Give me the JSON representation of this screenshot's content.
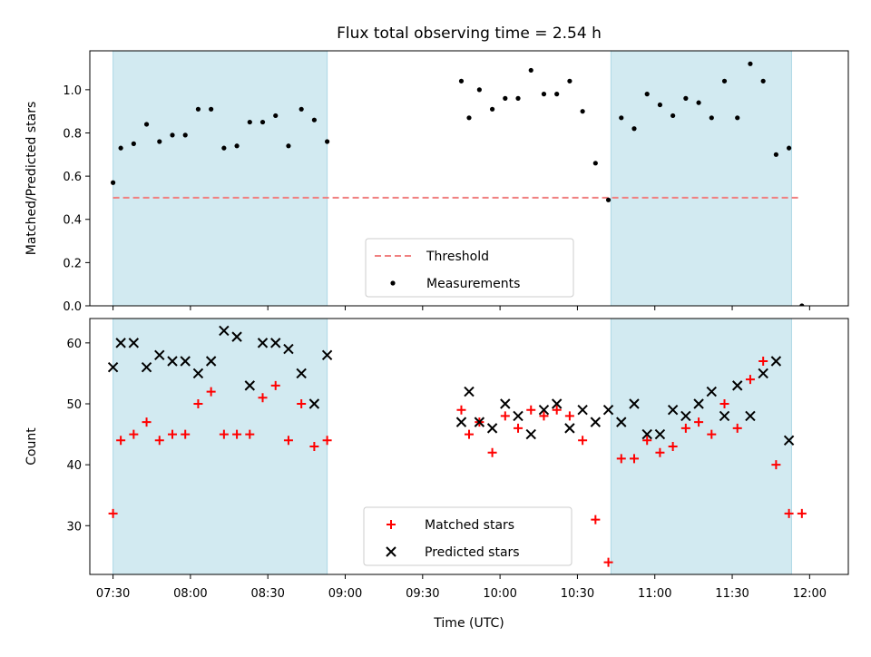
{
  "chart_data": {
    "type": "scatter",
    "title": "Flux total observing time = 2.54 h",
    "xlabel": "Time (UTC)",
    "x_range": [
      "07:21",
      "12:15"
    ],
    "x_ticks": [
      "07:30",
      "08:00",
      "08:30",
      "09:00",
      "09:30",
      "10:00",
      "10:30",
      "11:00",
      "11:30",
      "12:00"
    ],
    "grid": false,
    "shaded_intervals": [
      {
        "start": "07:30",
        "end": "08:53"
      },
      {
        "start": "10:43",
        "end": "11:53"
      }
    ],
    "shade_color": "#add8e6",
    "panels": [
      {
        "ylabel": "Matched/Predicted stars",
        "ylim": [
          0,
          1.18
        ],
        "y_ticks": [
          "0.0",
          "0.2",
          "0.4",
          "0.6",
          "0.8",
          "1.0"
        ],
        "legend_placement": "lower-center",
        "series": [
          {
            "name": "Threshold",
            "style": "dashed-line",
            "color": "#f08080",
            "x": [
              "07:30",
              "11:56"
            ],
            "y": [
              0.5,
              0.5
            ]
          },
          {
            "name": "Measurements",
            "style": "dot",
            "color": "#000000",
            "x": [
              "07:30",
              "07:33",
              "07:38",
              "07:43",
              "07:48",
              "07:53",
              "07:58",
              "08:03",
              "08:08",
              "08:13",
              "08:18",
              "08:23",
              "08:28",
              "08:33",
              "08:38",
              "08:43",
              "08:48",
              "08:53",
              "09:45",
              "09:48",
              "09:52",
              "09:57",
              "10:02",
              "10:07",
              "10:12",
              "10:17",
              "10:22",
              "10:27",
              "10:32",
              "10:37",
              "10:42",
              "10:47",
              "10:52",
              "10:57",
              "11:02",
              "11:07",
              "11:12",
              "11:17",
              "11:22",
              "11:27",
              "11:32",
              "11:37",
              "11:42",
              "11:47",
              "11:52",
              "11:57"
            ],
            "y": [
              0.57,
              0.73,
              0.75,
              0.84,
              0.76,
              0.79,
              0.79,
              0.91,
              0.91,
              0.73,
              0.74,
              0.85,
              0.85,
              0.88,
              0.74,
              0.91,
              0.86,
              0.76,
              1.04,
              0.87,
              1.0,
              0.91,
              0.96,
              0.96,
              1.09,
              0.98,
              0.98,
              1.04,
              0.9,
              0.66,
              0.49,
              0.87,
              0.82,
              0.98,
              0.93,
              0.88,
              0.96,
              0.94,
              0.87,
              1.04,
              0.87,
              1.12,
              1.04,
              0.7,
              0.73,
              0.0
            ]
          }
        ]
      },
      {
        "ylabel": "Count",
        "ylim": [
          22,
          64
        ],
        "y_ticks": [
          "30",
          "40",
          "50",
          "60"
        ],
        "legend_placement": "lower-center",
        "series": [
          {
            "name": "Matched stars",
            "marker": "plus",
            "color": "#ff0000",
            "x": [
              "07:30",
              "07:33",
              "07:38",
              "07:43",
              "07:48",
              "07:53",
              "07:58",
              "08:03",
              "08:08",
              "08:13",
              "08:18",
              "08:23",
              "08:28",
              "08:33",
              "08:38",
              "08:43",
              "08:48",
              "08:53",
              "09:45",
              "09:48",
              "09:52",
              "09:57",
              "10:02",
              "10:07",
              "10:12",
              "10:17",
              "10:22",
              "10:27",
              "10:32",
              "10:37",
              "10:42",
              "10:47",
              "10:52",
              "10:57",
              "11:02",
              "11:07",
              "11:12",
              "11:17",
              "11:22",
              "11:27",
              "11:32",
              "11:37",
              "11:42",
              "11:47",
              "11:52",
              "11:57"
            ],
            "y": [
              32,
              44,
              45,
              47,
              44,
              45,
              45,
              50,
              52,
              45,
              45,
              45,
              51,
              53,
              44,
              50,
              43,
              44,
              49,
              45,
              47,
              42,
              48,
              46,
              49,
              48,
              49,
              48,
              44,
              31,
              24,
              41,
              41,
              44,
              42,
              43,
              46,
              47,
              45,
              50,
              46,
              54,
              57,
              40,
              32,
              32
            ]
          },
          {
            "name": "Predicted stars",
            "marker": "x",
            "color": "#000000",
            "x": [
              "07:30",
              "07:33",
              "07:38",
              "07:43",
              "07:48",
              "07:53",
              "07:58",
              "08:03",
              "08:08",
              "08:13",
              "08:18",
              "08:23",
              "08:28",
              "08:33",
              "08:38",
              "08:43",
              "08:48",
              "08:53",
              "09:45",
              "09:48",
              "09:52",
              "09:57",
              "10:02",
              "10:07",
              "10:12",
              "10:17",
              "10:22",
              "10:27",
              "10:32",
              "10:37",
              "10:42",
              "10:47",
              "10:52",
              "10:57",
              "11:02",
              "11:07",
              "11:12",
              "11:17",
              "11:22",
              "11:27",
              "11:32",
              "11:37",
              "11:42",
              "11:47",
              "11:52"
            ],
            "y": [
              56,
              60,
              60,
              56,
              58,
              57,
              57,
              55,
              57,
              62,
              61,
              53,
              60,
              60,
              59,
              55,
              50,
              58,
              47,
              52,
              47,
              46,
              50,
              48,
              45,
              49,
              50,
              46,
              49,
              47,
              49,
              47,
              50,
              45,
              45,
              49,
              48,
              50,
              52,
              48,
              53,
              48,
              55,
              57,
              44
            ]
          }
        ]
      }
    ]
  }
}
